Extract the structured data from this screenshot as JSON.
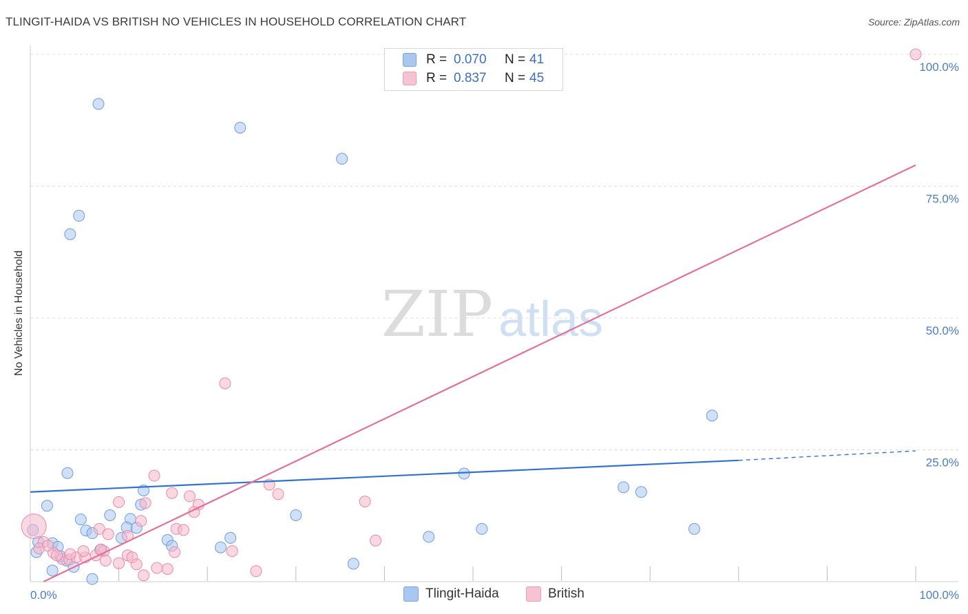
{
  "header": {
    "title": "TLINGIT-HAIDA VS BRITISH NO VEHICLES IN HOUSEHOLD CORRELATION CHART",
    "source": "Source: ZipAtlas.com"
  },
  "watermark": {
    "zip": "ZIP",
    "atlas": "atlas"
  },
  "legend": {
    "rows": [
      {
        "r_label": "R =",
        "r_value": "0.070",
        "n_label": "N =",
        "n_value": "41",
        "color": "#aac7f0"
      },
      {
        "r_label": "R =",
        "r_value": "0.837",
        "n_label": "N =",
        "n_value": "45",
        "color": "#f6b8cb"
      }
    ]
  },
  "bottom_legend": [
    {
      "label": "Tlingit-Haida",
      "color": "#aac7f0"
    },
    {
      "label": "British",
      "color": "#f6b8cb"
    }
  ],
  "chart_data": {
    "type": "scatter",
    "title": "TLINGIT-HAIDA VS BRITISH NO VEHICLES IN HOUSEHOLD CORRELATION CHART",
    "xlabel": "",
    "ylabel": "No Vehicles in Household",
    "xlim": [
      0,
      100
    ],
    "ylim": [
      0,
      100
    ],
    "x_ticks": [
      "0.0%",
      "100.0%"
    ],
    "y_ticks": [
      "25.0%",
      "50.0%",
      "75.0%",
      "100.0%"
    ],
    "y_tick_values": [
      25,
      50,
      75,
      100
    ],
    "grid": "horizontal dashed",
    "series": [
      {
        "name": "Tlingit-Haida",
        "color": "#aac7f0",
        "stroke": "#6f9be0",
        "points": [
          [
            7.7,
            90.6
          ],
          [
            23.7,
            86.1
          ],
          [
            35.2,
            80.2
          ],
          [
            5.5,
            69.4
          ],
          [
            4.5,
            65.9
          ],
          [
            77.0,
            31.5
          ],
          [
            4.2,
            20.6
          ],
          [
            49.0,
            20.5
          ],
          [
            12.8,
            17.3
          ],
          [
            67.0,
            17.9
          ],
          [
            69.0,
            17.0
          ],
          [
            1.9,
            14.4
          ],
          [
            9.0,
            12.6
          ],
          [
            12.5,
            14.6
          ],
          [
            30.0,
            12.6
          ],
          [
            5.7,
            11.8
          ],
          [
            11.3,
            11.9
          ],
          [
            10.9,
            10.3
          ],
          [
            6.3,
            9.7
          ],
          [
            7.0,
            9.2
          ],
          [
            0.3,
            9.8
          ],
          [
            10.3,
            8.3
          ],
          [
            15.5,
            7.9
          ],
          [
            22.6,
            8.3
          ],
          [
            45.0,
            8.5
          ],
          [
            51.0,
            10.0
          ],
          [
            75.0,
            10.0
          ],
          [
            16.0,
            6.8
          ],
          [
            21.5,
            6.5
          ],
          [
            2.5,
            7.3
          ],
          [
            0.9,
            7.5
          ],
          [
            3.1,
            6.6
          ],
          [
            7.9,
            6.0
          ],
          [
            0.7,
            5.6
          ],
          [
            3.4,
            4.8
          ],
          [
            4.1,
            4.0
          ],
          [
            4.9,
            2.8
          ],
          [
            2.5,
            2.1
          ],
          [
            36.5,
            3.4
          ],
          [
            7.0,
            0.5
          ],
          [
            12.0,
            10.2
          ]
        ],
        "trend": {
          "x0": 0,
          "y0": 17.0,
          "x1": 80,
          "y1": 23.0,
          "dash_x1": 100,
          "dash_y1": 24.8,
          "color": "#3072d0"
        }
      },
      {
        "name": "British",
        "color": "#f6b8cb",
        "stroke": "#e88aa8",
        "points": [
          [
            100.0,
            100.0
          ],
          [
            22.0,
            37.6
          ],
          [
            14.0,
            20.1
          ],
          [
            27.0,
            18.4
          ],
          [
            16.0,
            16.8
          ],
          [
            28.0,
            16.6
          ],
          [
            18.0,
            16.2
          ],
          [
            37.8,
            15.2
          ],
          [
            10.0,
            15.1
          ],
          [
            13.0,
            14.9
          ],
          [
            19.0,
            14.6
          ],
          [
            18.5,
            13.2
          ],
          [
            12.5,
            11.5
          ],
          [
            7.8,
            10.0
          ],
          [
            16.5,
            10.0
          ],
          [
            17.3,
            9.8
          ],
          [
            8.8,
            9.0
          ],
          [
            11.0,
            8.7
          ],
          [
            39.0,
            7.8
          ],
          [
            0.4,
            10.5
          ],
          [
            1.5,
            7.5
          ],
          [
            8.3,
            5.8
          ],
          [
            2.6,
            5.5
          ],
          [
            3.6,
            4.3
          ],
          [
            4.4,
            4.2
          ],
          [
            5.2,
            4.6
          ],
          [
            6.2,
            4.6
          ],
          [
            7.4,
            5.0
          ],
          [
            8.0,
            6.1
          ],
          [
            11.0,
            5.0
          ],
          [
            11.5,
            4.6
          ],
          [
            16.3,
            5.6
          ],
          [
            22.8,
            5.8
          ],
          [
            1.0,
            6.3
          ],
          [
            2.0,
            6.8
          ],
          [
            6.0,
            5.8
          ],
          [
            8.5,
            4.0
          ],
          [
            10.0,
            3.5
          ],
          [
            12.0,
            3.3
          ],
          [
            14.3,
            2.6
          ],
          [
            15.5,
            2.4
          ],
          [
            12.8,
            1.2
          ],
          [
            25.5,
            2.0
          ],
          [
            4.5,
            5.2
          ],
          [
            3.0,
            5.0
          ]
        ],
        "trend": {
          "x0": 1.5,
          "y0": 0.0,
          "x1": 100,
          "y1": 79.0,
          "color": "#e4709a"
        }
      }
    ]
  }
}
